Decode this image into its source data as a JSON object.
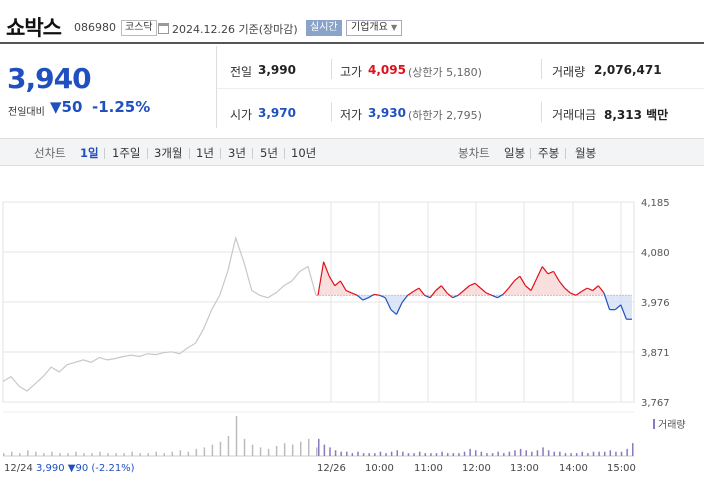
{
  "header": {
    "stock_name": "쇼박스",
    "stock_code": "086980",
    "market_badge": "코스닥",
    "date_text": "2024.12.26  기준(장마감)",
    "realtime_label": "실시간",
    "company_btn_label": "기업개요"
  },
  "price": {
    "current": "3,940",
    "prev_label": "전일대비",
    "change_amount": "▼50",
    "change_percent": "-1.25%"
  },
  "info": {
    "prev_close": {
      "label": "전일",
      "value": "3,990"
    },
    "high": {
      "label": "고가",
      "value": "4,095",
      "note": "(상한가 5,180)"
    },
    "volume": {
      "label": "거래량",
      "value": "2,076,471"
    },
    "open": {
      "label": "시가",
      "value": "3,970"
    },
    "low": {
      "label": "저가",
      "value": "3,930",
      "note": "(하한가 2,795)"
    },
    "trade_value": {
      "label": "거래대금",
      "value": "8,313 백만"
    }
  },
  "period_bar": {
    "line_chart_label": "선차트",
    "periods": [
      "1일",
      "1주일",
      "3개월",
      "1년",
      "3년",
      "5년",
      "10년"
    ],
    "active_period": "1일",
    "candle_label": "봉차트",
    "candle_periods": [
      "일봉",
      "주봉",
      "월봉"
    ]
  },
  "chart_data": {
    "type": "line",
    "y_ticks": [
      "4,185",
      "4,080",
      "3,976",
      "3,871",
      "3,767"
    ],
    "ylim": [
      3767,
      4185
    ],
    "x_ticks": [
      "12/26",
      "10:00",
      "11:00",
      "12:00",
      "13:00",
      "14:00",
      "15:00"
    ],
    "baseline": 3990,
    "volume_legend": "거래량",
    "prev_day_label": "12/24",
    "prev_day_summary": "3,990 ▼90 (-2.21%)",
    "colors": {
      "up": "#e0101b",
      "down": "#2050c0",
      "prev_day": "#c8c8c8",
      "volume_prev": "#bbbbbb",
      "volume_today": "#8b78c0",
      "grid": "#e6e6e6",
      "fill_up": "#f7d0d0",
      "fill_down": "#cfdcf3"
    },
    "prev_day_series": [
      3810,
      3820,
      3800,
      3790,
      3805,
      3820,
      3840,
      3830,
      3845,
      3850,
      3855,
      3850,
      3860,
      3855,
      3858,
      3862,
      3865,
      3862,
      3868,
      3866,
      3870,
      3872,
      3868,
      3880,
      3890,
      3920,
      3960,
      3990,
      4040,
      4110,
      4060,
      4000,
      3990,
      3985,
      3995,
      4010,
      4020,
      4040,
      4050,
      3990
    ],
    "today_series": [
      3990,
      4060,
      4030,
      4010,
      4020,
      4000,
      3995,
      3990,
      3980,
      3985,
      3992,
      3990,
      3985,
      3960,
      3950,
      3975,
      3990,
      3998,
      4005,
      3990,
      3985,
      4000,
      4010,
      3995,
      3985,
      3990,
      4000,
      4010,
      4015,
      4005,
      3995,
      3990,
      3985,
      3992,
      4005,
      4020,
      4030,
      4010,
      4000,
      4025,
      4050,
      4035,
      4040,
      4020,
      4005,
      3995,
      3990,
      3998,
      4005,
      4000,
      4010,
      3995,
      3960,
      3960,
      3970,
      3940,
      3940
    ],
    "prev_day_volume": [
      2,
      3,
      2,
      4,
      3,
      2,
      3,
      2,
      2,
      3,
      2,
      2,
      3,
      2,
      2,
      2,
      3,
      2,
      2,
      3,
      2,
      3,
      4,
      3,
      5,
      6,
      8,
      10,
      14,
      28,
      12,
      8,
      6,
      5,
      7,
      9,
      8,
      10,
      12,
      6
    ],
    "today_volume": [
      12,
      8,
      6,
      4,
      3,
      3,
      2,
      3,
      2,
      2,
      2,
      3,
      2,
      3,
      4,
      3,
      2,
      2,
      3,
      2,
      2,
      2,
      3,
      2,
      2,
      2,
      3,
      5,
      4,
      3,
      2,
      2,
      3,
      2,
      3,
      4,
      5,
      4,
      3,
      4,
      6,
      4,
      3,
      3,
      2,
      2,
      2,
      3,
      2,
      3,
      3,
      3,
      4,
      3,
      3,
      5,
      9
    ]
  }
}
